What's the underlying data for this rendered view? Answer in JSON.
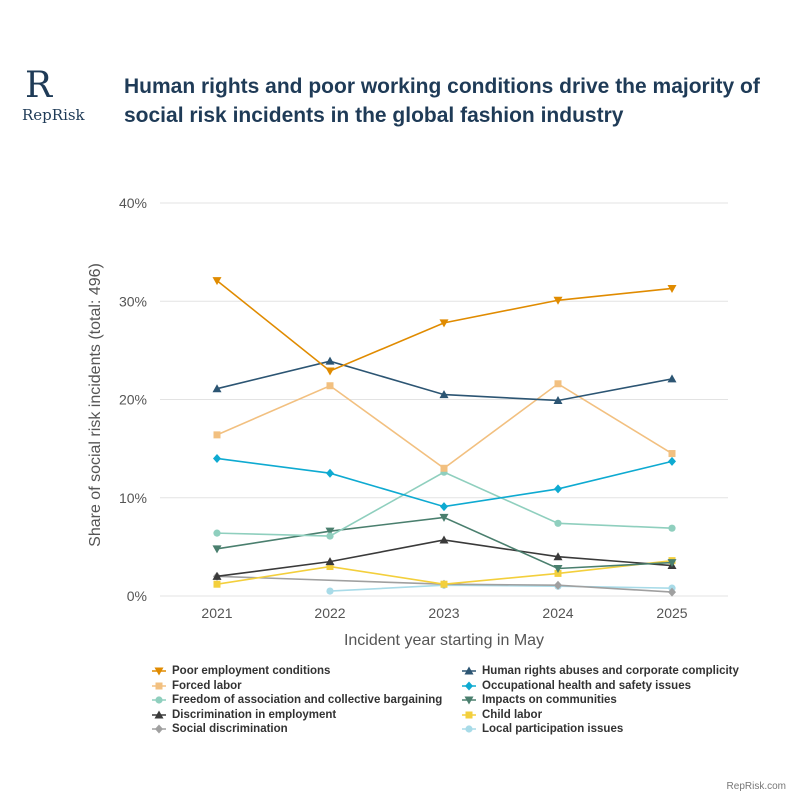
{
  "brand": {
    "logo_mark": "R",
    "logo_text": "RepRisk",
    "footer": "RepRisk.com"
  },
  "title": "Human rights and poor working conditions drive the majority of social risk incidents in the global fashion industry",
  "chart_data": {
    "type": "line",
    "title": "Human rights and poor working conditions drive the majority of social risk incidents in the global fashion industry",
    "xlabel": "Incident year starting in May",
    "ylabel": "Share of social risk incidents (total: 496)",
    "categories": [
      "2021",
      "2022",
      "2023",
      "2024",
      "2025"
    ],
    "ylim": [
      0,
      40
    ],
    "yticks": [
      0,
      10,
      20,
      30,
      40
    ],
    "ytick_labels": [
      "0%",
      "10%",
      "20%",
      "30%",
      "40%"
    ],
    "grid": true,
    "legend_position": "bottom",
    "series": [
      {
        "name": "Poor employment conditions",
        "color": "#e08b00",
        "marker": "tri-down",
        "values": [
          32.1,
          22.9,
          27.8,
          30.1,
          31.3
        ]
      },
      {
        "name": "Human rights abuses and corporate complicity",
        "color": "#2c5573",
        "marker": "tri-up",
        "values": [
          21.1,
          23.9,
          20.5,
          19.9,
          22.1
        ]
      },
      {
        "name": "Forced labor",
        "color": "#f2c080",
        "marker": "square",
        "values": [
          16.4,
          21.4,
          13.0,
          21.6,
          14.5
        ]
      },
      {
        "name": "Occupational health and safety issues",
        "color": "#0eaad1",
        "marker": "diamond",
        "values": [
          14.0,
          12.5,
          9.1,
          10.9,
          13.7
        ]
      },
      {
        "name": "Freedom of association and collective bargaining",
        "color": "#8fcfbe",
        "marker": "circle",
        "values": [
          6.4,
          6.1,
          12.6,
          7.4,
          6.9
        ]
      },
      {
        "name": "Impacts on communities",
        "color": "#4a7f6e",
        "marker": "tri-down",
        "values": [
          4.8,
          6.6,
          8.0,
          2.8,
          3.4
        ]
      },
      {
        "name": "Discrimination in employment",
        "color": "#3a3a3a",
        "marker": "tri-up",
        "values": [
          2.0,
          3.5,
          5.7,
          4.0,
          3.1
        ]
      },
      {
        "name": "Child labor",
        "color": "#f3cf3c",
        "marker": "square",
        "values": [
          1.2,
          3.0,
          1.2,
          2.3,
          3.6
        ]
      },
      {
        "name": "Social discrimination",
        "color": "#a0a0a0",
        "marker": "diamond",
        "values": [
          2.0,
          null,
          1.2,
          1.1,
          0.4
        ]
      },
      {
        "name": "Local participation issues",
        "color": "#a8dbe8",
        "marker": "circle",
        "values": [
          null,
          0.5,
          1.1,
          1.0,
          0.8
        ]
      }
    ]
  }
}
